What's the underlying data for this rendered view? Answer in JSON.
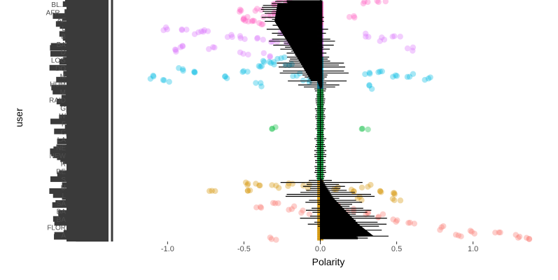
{
  "chart_data": {
    "type": "scatter",
    "title": "",
    "xlabel": "Polarity",
    "ylabel": "user",
    "xlim": [
      -1.35,
      1.35
    ],
    "x_ticks": [
      -1.0,
      -0.5,
      0.0,
      0.5,
      1.0
    ],
    "x_tick_labels": [
      "-1.0",
      "-0.5",
      "0.0",
      "0.5",
      "1.0"
    ],
    "grid": false,
    "legend": "none",
    "n_users": 120,
    "visible_user_labels": [
      "BL...",
      "AFR...",
      "AF",
      "L",
      "B",
      "BA",
      "D",
      "LOG",
      "DO",
      "M",
      "HUM",
      "M",
      "RAID",
      "G",
      "W",
      "F",
      "C",
      "LA",
      "NE",
      "NEW",
      "R",
      "RE",
      "S",
      "U",
      "L",
      "SA",
      "BA",
      "BA",
      "FLOR",
      "A"
    ],
    "palette": [
      "#f8766d",
      "#d39200",
      "#93aa00",
      "#00ba38",
      "#00c19f",
      "#00b9e3",
      "#619cff",
      "#db72fb",
      "#ff61c3"
    ],
    "series": [
      {
        "group": 1,
        "y_range": [
          0,
          12
        ],
        "color": "#ff61c3",
        "points": [
          [
            -0.2,
            1
          ],
          [
            -0.25,
            0
          ],
          [
            -0.3,
            2
          ],
          [
            -0.15,
            3
          ],
          [
            -0.4,
            4
          ],
          [
            -0.5,
            5
          ],
          [
            -0.3,
            6
          ],
          [
            -0.35,
            7
          ],
          [
            -0.5,
            8
          ],
          [
            -0.45,
            9
          ],
          [
            -0.5,
            10
          ],
          [
            -0.4,
            11
          ],
          [
            -0.1,
            3
          ],
          [
            0.3,
            1
          ],
          [
            0.4,
            0
          ],
          [
            -0.05,
            5
          ],
          [
            0.2,
            8
          ],
          [
            -0.22,
            6
          ]
        ]
      },
      {
        "group": 2,
        "y_range": [
          12,
          28
        ],
        "color": "#db72fb",
        "points": [
          [
            -1.0,
            14
          ],
          [
            -0.9,
            15
          ],
          [
            -0.8,
            16
          ],
          [
            -0.75,
            15
          ],
          [
            -0.6,
            17
          ],
          [
            -0.5,
            18
          ],
          [
            -0.4,
            19
          ],
          [
            -0.3,
            20
          ],
          [
            -0.25,
            16
          ],
          [
            -0.2,
            21
          ],
          [
            -0.1,
            22
          ],
          [
            0.3,
            17
          ],
          [
            0.5,
            18
          ],
          [
            0.4,
            19
          ],
          [
            -0.9,
            23
          ],
          [
            -0.95,
            25
          ],
          [
            -0.7,
            24
          ],
          [
            -0.5,
            26
          ],
          [
            -0.35,
            27
          ],
          [
            0.6,
            24
          ]
        ]
      },
      {
        "group": 3,
        "y_range": [
          28,
          44
        ],
        "color": "#00b9e3",
        "points": [
          [
            -1.1,
            38
          ],
          [
            -1.0,
            40
          ],
          [
            -0.9,
            34
          ],
          [
            -0.8,
            36
          ],
          [
            -0.6,
            38
          ],
          [
            -0.5,
            35
          ],
          [
            -0.4,
            33
          ],
          [
            -0.3,
            31
          ],
          [
            -0.35,
            30
          ],
          [
            -0.25,
            29
          ],
          [
            -0.2,
            32
          ],
          [
            -0.15,
            37
          ],
          [
            -0.1,
            40
          ],
          [
            0.3,
            36
          ],
          [
            0.4,
            35
          ],
          [
            0.5,
            38
          ],
          [
            0.6,
            37
          ],
          [
            0.7,
            39
          ],
          [
            -0.4,
            42
          ],
          [
            0.35,
            43
          ]
        ]
      },
      {
        "group": 4,
        "y_range": [
          44,
          90
        ],
        "color": "#00ba38",
        "points": [
          [
            -0.3,
            64
          ],
          [
            0.3,
            64
          ]
        ]
      },
      {
        "group": 5,
        "y_range": [
          90,
          120
        ],
        "color": "#d39200",
        "points": [
          [
            -0.5,
            92
          ],
          [
            -0.4,
            92
          ],
          [
            -0.3,
            93
          ],
          [
            -0.2,
            92
          ],
          [
            -0.1,
            93
          ],
          [
            0.1,
            94
          ],
          [
            0.2,
            95
          ],
          [
            0.3,
            93
          ],
          [
            0.4,
            96
          ],
          [
            0.5,
            97
          ],
          [
            -0.7,
            96
          ],
          [
            -0.45,
            95
          ],
          [
            0.25,
            99
          ],
          [
            0.5,
            100
          ]
        ]
      },
      {
        "group": 6,
        "y_range": [
          96,
          120
        ],
        "color": "#f8766d",
        "points": [
          [
            -0.4,
            103
          ],
          [
            -0.3,
            101
          ],
          [
            -0.2,
            104
          ],
          [
            -0.1,
            106
          ],
          [
            0.1,
            103
          ],
          [
            0.2,
            105
          ],
          [
            0.3,
            107
          ],
          [
            0.4,
            108
          ],
          [
            0.5,
            110
          ],
          [
            0.6,
            112
          ],
          [
            0.8,
            114
          ],
          [
            1.0,
            116
          ],
          [
            1.15,
            117
          ],
          [
            1.3,
            118
          ],
          [
            1.35,
            119
          ],
          [
            0.2,
            111
          ],
          [
            -0.3,
            119
          ],
          [
            0.9,
            118
          ]
        ]
      }
    ],
    "error_bars": "per-user mean polarity with horizontal error bars (black), one per user, sorted by mean"
  }
}
